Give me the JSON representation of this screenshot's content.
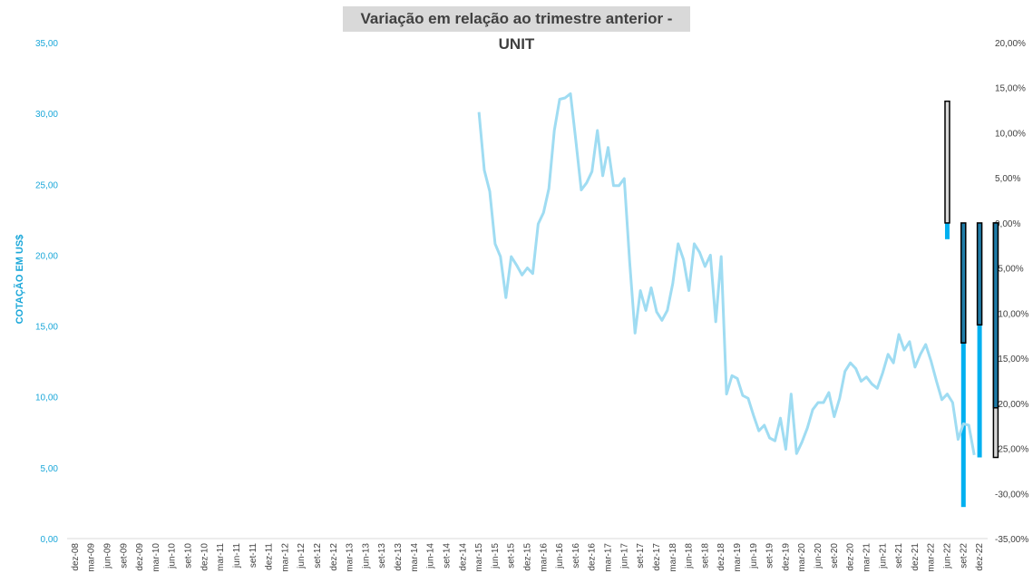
{
  "chart_data": {
    "type": "line",
    "title": "Variação em relação ao trimestre anterior - UNIT",
    "ylabel": "COTAÇÃO EM US$",
    "ylim": [
      0,
      35
    ],
    "y2lim": [
      -35,
      20
    ],
    "yticks": [
      "0,00",
      "5,00",
      "10,00",
      "15,00",
      "20,00",
      "25,00",
      "30,00",
      "35,00"
    ],
    "y2ticks": [
      "-35,00%",
      "-30,00%",
      "-25,00%",
      "-20,00%",
      "-15,00%",
      "-10,00%",
      "-5,00%",
      "0,00%",
      "5,00%",
      "10,00%",
      "15,00%",
      "20,00%"
    ],
    "x_labels": [
      "dez-08",
      "mar-09",
      "jun-09",
      "set-09",
      "dez-09",
      "mar-10",
      "jun-10",
      "set-10",
      "dez-10",
      "mar-11",
      "jun-11",
      "set-11",
      "dez-11",
      "mar-12",
      "jun-12",
      "set-12",
      "dez-12",
      "mar-13",
      "jun-13",
      "set-13",
      "dez-13",
      "mar-14",
      "jun-14",
      "set-14",
      "dez-14",
      "mar-15",
      "jun-15",
      "set-15",
      "dez-15",
      "mar-16",
      "jun-16",
      "set-16",
      "dez-16",
      "mar-17",
      "jun-17",
      "set-17",
      "dez-17",
      "mar-18",
      "jun-18",
      "set-18",
      "dez-18",
      "mar-19",
      "jun-19",
      "set-19",
      "dez-19",
      "mar-20",
      "jun-20",
      "set-20",
      "dez-20",
      "mar-21",
      "jun-21",
      "set-21",
      "dez-21",
      "mar-22",
      "jun-22",
      "set-22",
      "dez-22"
    ],
    "line_series": {
      "color": "#9fdcf2",
      "start_quarter": 25,
      "values": [
        30.1,
        26.0,
        24.5,
        20.8,
        19.9,
        17.0,
        19.9,
        19.3,
        18.6,
        19.1,
        18.7,
        22.2,
        23.0,
        24.7,
        28.8,
        31.0,
        31.1,
        31.4,
        28.1,
        24.6,
        25.1,
        25.9,
        28.8,
        25.6,
        27.6,
        24.9,
        24.9,
        25.4,
        19.5,
        14.5,
        17.5,
        16.1,
        17.7,
        16.0,
        15.4,
        16.1,
        18.0,
        20.8,
        19.7,
        17.5,
        20.8,
        20.2,
        19.2,
        20.0,
        15.3,
        19.9,
        10.2,
        11.5,
        11.3,
        10.1,
        9.9,
        8.7,
        7.6,
        8.0,
        7.1,
        6.9,
        8.5,
        6.3,
        10.2,
        6.0,
        6.8,
        7.8,
        9.1,
        9.6,
        9.6,
        10.3,
        8.6,
        9.9,
        11.8,
        12.4,
        12.0,
        11.1,
        11.4,
        10.9,
        10.6,
        11.7,
        13.0,
        12.4,
        14.4,
        13.3,
        13.9,
        12.1,
        13.0,
        13.7,
        12.5,
        11.1,
        9.8,
        10.2,
        9.6,
        7.0,
        8.1,
        8.0,
        5.9
      ]
    },
    "bar_series": [
      {
        "name": "",
        "color": "#00b0f0",
        "values": [
          {
            "quarter": 54,
            "value": -1.8
          },
          {
            "quarter": 55,
            "value": -31.5
          },
          {
            "quarter": 56,
            "value": -26.0
          },
          {
            "quarter": 57,
            "value": -25.5
          }
        ]
      },
      {
        "name": "",
        "color": "#d9d9d9",
        "values": [
          {
            "quarter": 54,
            "value": 13.5
          },
          {
            "quarter": 57,
            "value": -26.0
          }
        ]
      },
      {
        "name": "",
        "color": "#1f7ca8",
        "values": [
          {
            "quarter": 55,
            "value": -13.3
          },
          {
            "quarter": 56,
            "value": -11.3
          },
          {
            "quarter": 57,
            "value": -20.5
          }
        ]
      }
    ]
  }
}
